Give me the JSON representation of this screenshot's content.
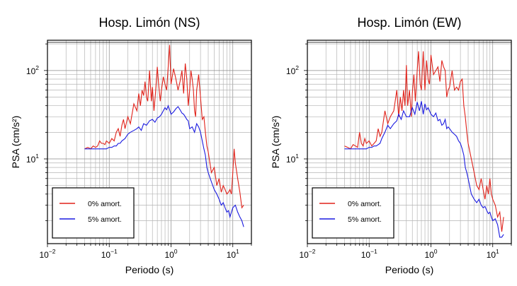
{
  "chart_data": [
    {
      "type": "line",
      "title": "Hosp. Limón (NS)",
      "xlabel": "Periodo (s)",
      "ylabel": "PSA (cm/s²)",
      "xscale": "log",
      "yscale": "log",
      "xlim": [
        0.01,
        20
      ],
      "ylim": [
        1.1,
        220
      ],
      "grid": true,
      "legend_position": "bottom-left",
      "x_ticks": [
        {
          "value": 0.01,
          "base": "10",
          "exp": "−2"
        },
        {
          "value": 0.1,
          "base": "10",
          "exp": "−1"
        },
        {
          "value": 1,
          "base": "10",
          "exp": "0"
        },
        {
          "value": 10,
          "base": "10",
          "exp": "1"
        }
      ],
      "y_ticks": [
        {
          "value": 10,
          "base": "10",
          "exp": "1"
        },
        {
          "value": 100,
          "base": "10",
          "exp": "2"
        }
      ],
      "series": [
        {
          "name": "0% amort.",
          "color": "#e0221a",
          "x": [
            0.04,
            0.045,
            0.05,
            0.055,
            0.06,
            0.065,
            0.07,
            0.075,
            0.08,
            0.085,
            0.09,
            0.1,
            0.11,
            0.12,
            0.13,
            0.14,
            0.15,
            0.16,
            0.17,
            0.18,
            0.2,
            0.22,
            0.25,
            0.28,
            0.3,
            0.32,
            0.34,
            0.36,
            0.38,
            0.4,
            0.42,
            0.45,
            0.48,
            0.5,
            0.53,
            0.56,
            0.6,
            0.63,
            0.67,
            0.7,
            0.75,
            0.8,
            0.85,
            0.9,
            0.95,
            1.0,
            1.1,
            1.2,
            1.3,
            1.4,
            1.5,
            1.6,
            1.7,
            1.8,
            1.9,
            2.0,
            2.1,
            2.2,
            2.3,
            2.4,
            2.5,
            2.6,
            2.8,
            3.0,
            3.2,
            3.4,
            3.6,
            3.8,
            4.0,
            4.5,
            5.0,
            5.5,
            6.0,
            6.5,
            7.0,
            7.5,
            8.0,
            8.5,
            9.0,
            9.5,
            10.0,
            10.5,
            11.0,
            12.0,
            13.0,
            14.0,
            15.0
          ],
          "values": [
            13,
            13.5,
            13,
            14,
            13.5,
            14,
            16,
            15,
            15,
            14.5,
            16,
            15,
            17,
            16,
            20,
            22,
            18,
            24,
            28,
            22,
            30,
            25,
            42,
            35,
            55,
            40,
            60,
            52,
            75,
            50,
            45,
            100,
            45,
            65,
            35,
            55,
            110,
            70,
            45,
            60,
            85,
            70,
            60,
            110,
            195,
            70,
            105,
            80,
            60,
            75,
            100,
            55,
            120,
            80,
            40,
            60,
            100,
            80,
            60,
            35,
            30,
            60,
            90,
            50,
            28,
            30,
            20,
            14,
            12,
            7,
            8,
            5,
            6,
            4.2,
            5,
            4.5,
            4,
            4.2,
            4.5,
            4,
            7,
            13,
            9,
            6,
            4.2,
            2.8,
            3
          ]
        },
        {
          "name": "5% amort.",
          "color": "#1a1ae0",
          "x": [
            0.04,
            0.05,
            0.06,
            0.07,
            0.08,
            0.09,
            0.1,
            0.11,
            0.12,
            0.13,
            0.14,
            0.15,
            0.16,
            0.18,
            0.2,
            0.22,
            0.25,
            0.28,
            0.3,
            0.33,
            0.36,
            0.4,
            0.45,
            0.5,
            0.55,
            0.6,
            0.65,
            0.7,
            0.75,
            0.8,
            0.85,
            0.9,
            0.95,
            1.0,
            1.1,
            1.2,
            1.3,
            1.4,
            1.5,
            1.6,
            1.7,
            1.8,
            1.9,
            2.0,
            2.2,
            2.4,
            2.6,
            2.8,
            3.0,
            3.2,
            3.4,
            3.6,
            3.8,
            4.0,
            4.5,
            5.0,
            5.5,
            6.0,
            6.5,
            7.0,
            7.5,
            8.0,
            8.5,
            9.0,
            9.5,
            10.0,
            11.0,
            12.0,
            13.0,
            14.0,
            15.0
          ],
          "values": [
            13,
            13,
            13,
            13,
            13,
            13,
            13.5,
            13.5,
            14,
            14,
            15,
            15,
            16,
            17,
            19,
            20,
            21,
            22,
            23,
            21,
            25,
            24,
            27,
            28,
            26,
            29,
            30,
            32,
            35,
            38,
            36,
            40,
            36,
            32,
            34,
            37,
            39,
            36,
            33,
            32,
            30,
            28,
            27,
            22,
            23,
            20,
            25,
            23,
            20,
            16,
            13,
            11,
            8,
            7,
            5.5,
            4.5,
            4,
            3.5,
            3,
            3.2,
            2.8,
            2.5,
            2.6,
            2.2,
            2.5,
            2.8,
            3,
            2.5,
            2.2,
            2,
            1.7
          ]
        }
      ]
    },
    {
      "type": "line",
      "title": "Hosp. Limón (EW)",
      "xlabel": "Periodo (s)",
      "ylabel": "PSA (cm/s²)",
      "xscale": "log",
      "yscale": "log",
      "xlim": [
        0.01,
        20
      ],
      "ylim": [
        1.1,
        220
      ],
      "grid": true,
      "legend_position": "bottom-left",
      "x_ticks": [
        {
          "value": 0.01,
          "base": "10",
          "exp": "−2"
        },
        {
          "value": 0.1,
          "base": "10",
          "exp": "−1"
        },
        {
          "value": 1,
          "base": "10",
          "exp": "0"
        },
        {
          "value": 10,
          "base": "10",
          "exp": "1"
        }
      ],
      "y_ticks": [
        {
          "value": 10,
          "base": "10",
          "exp": "1"
        },
        {
          "value": 100,
          "base": "10",
          "exp": "2"
        }
      ],
      "series": [
        {
          "name": "0% amort.",
          "color": "#e0221a",
          "x": [
            0.04,
            0.045,
            0.05,
            0.055,
            0.06,
            0.065,
            0.07,
            0.075,
            0.08,
            0.085,
            0.09,
            0.1,
            0.11,
            0.12,
            0.13,
            0.14,
            0.15,
            0.16,
            0.18,
            0.2,
            0.22,
            0.25,
            0.28,
            0.3,
            0.32,
            0.34,
            0.36,
            0.38,
            0.4,
            0.42,
            0.45,
            0.48,
            0.5,
            0.53,
            0.56,
            0.6,
            0.63,
            0.67,
            0.7,
            0.75,
            0.8,
            0.85,
            0.9,
            0.95,
            1.0,
            1.1,
            1.2,
            1.3,
            1.4,
            1.5,
            1.6,
            1.7,
            1.8,
            1.9,
            2.0,
            2.2,
            2.4,
            2.6,
            2.8,
            3.0,
            3.2,
            3.4,
            3.6,
            3.8,
            4.0,
            4.5,
            5.0,
            5.5,
            6.0,
            6.5,
            7.0,
            7.5,
            8.0,
            8.5,
            9.0,
            9.5,
            10.0,
            11.0,
            12.0,
            13.0,
            14.0,
            15.0
          ],
          "values": [
            14,
            13.5,
            13,
            14.5,
            14,
            13.5,
            20,
            15,
            14,
            17,
            15,
            16,
            14,
            15,
            16,
            22,
            18,
            20,
            35,
            25,
            30,
            35,
            60,
            30,
            50,
            35,
            60,
            40,
            115,
            40,
            60,
            30,
            55,
            90,
            45,
            100,
            165,
            70,
            60,
            165,
            60,
            130,
            80,
            70,
            150,
            90,
            100,
            110,
            75,
            130,
            110,
            100,
            50,
            60,
            65,
            100,
            60,
            65,
            60,
            75,
            80,
            40,
            30,
            20,
            15,
            10,
            7,
            5,
            4.5,
            6,
            4.5,
            3.5,
            5,
            4,
            6,
            4,
            3.5,
            3,
            2.2,
            2.5,
            1.5,
            2.2
          ]
        },
        {
          "name": "5% amort.",
          "color": "#1a1ae0",
          "x": [
            0.04,
            0.05,
            0.06,
            0.07,
            0.08,
            0.09,
            0.1,
            0.11,
            0.12,
            0.13,
            0.14,
            0.15,
            0.16,
            0.18,
            0.2,
            0.22,
            0.25,
            0.28,
            0.3,
            0.33,
            0.36,
            0.4,
            0.45,
            0.5,
            0.55,
            0.6,
            0.65,
            0.7,
            0.75,
            0.8,
            0.85,
            0.9,
            0.95,
            1.0,
            1.1,
            1.2,
            1.3,
            1.4,
            1.5,
            1.6,
            1.7,
            1.8,
            1.9,
            2.0,
            2.2,
            2.4,
            2.6,
            2.8,
            3.0,
            3.2,
            3.4,
            3.6,
            3.8,
            4.0,
            4.5,
            5.0,
            5.5,
            6.0,
            6.5,
            7.0,
            7.5,
            8.0,
            8.5,
            9.0,
            9.5,
            10.0,
            11.0,
            12.0,
            13.0,
            14.0,
            15.0
          ],
          "values": [
            13,
            13,
            13,
            13,
            13,
            13,
            13.5,
            13.5,
            14,
            14,
            14.5,
            15,
            17,
            20,
            24,
            22,
            25,
            27,
            32,
            28,
            35,
            30,
            30,
            38,
            32,
            44,
            35,
            45,
            32,
            42,
            36,
            38,
            35,
            32,
            30,
            33,
            27,
            28,
            24,
            25,
            28,
            22,
            23,
            22,
            20,
            19,
            18,
            16,
            15,
            13,
            11,
            8,
            7,
            6,
            4,
            3.5,
            3.2,
            3.5,
            3,
            2.8,
            2.9,
            2.6,
            2.4,
            2.5,
            2.2,
            2,
            2.1,
            1.8,
            1.3,
            1.3,
            1.4
          ]
        }
      ]
    }
  ]
}
